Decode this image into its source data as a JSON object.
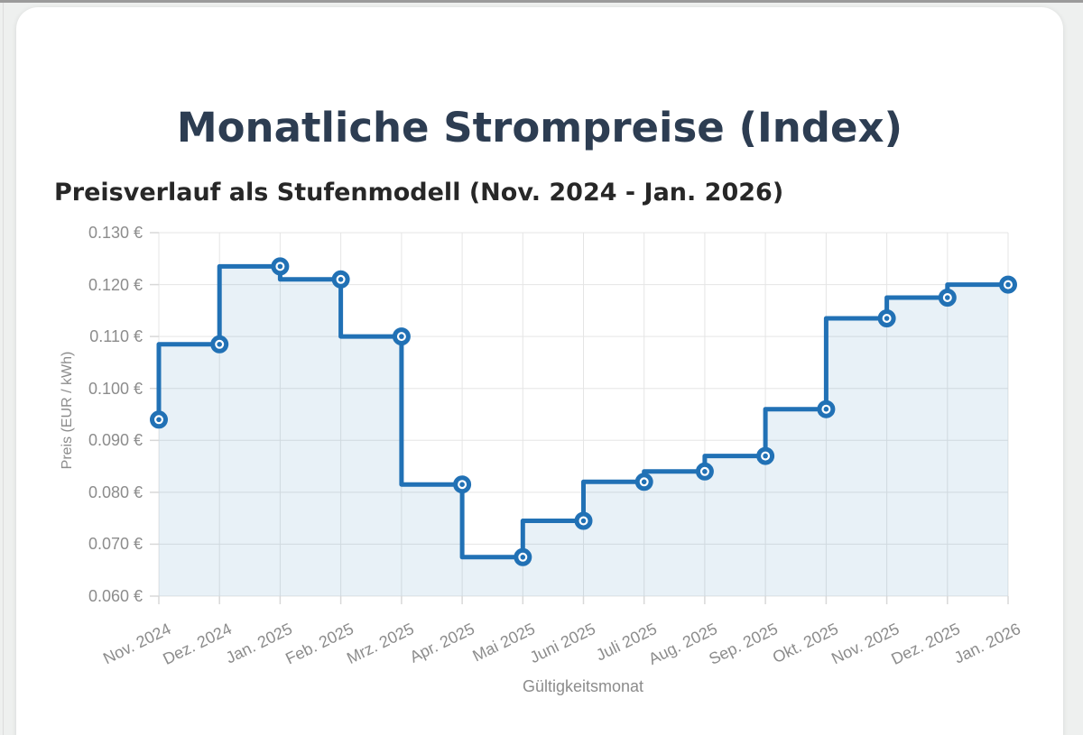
{
  "page": {
    "title": "Monatliche Strompreise (Index)",
    "subtitle": "Preisverlauf als Stufenmodell (Nov. 2024 - Jan. 2026)"
  },
  "chart_data": {
    "type": "line",
    "stepped": "before",
    "title": "Monatliche Strompreise (Index)",
    "subtitle": "Preisverlauf als Stufenmodell (Nov. 2024 - Jan. 2026)",
    "categories": [
      "Nov. 2024",
      "Dez. 2024",
      "Jan. 2025",
      "Feb. 2025",
      "Mrz. 2025",
      "Apr. 2025",
      "Mai 2025",
      "Juni 2025",
      "Juli 2025",
      "Aug. 2025",
      "Sep. 2025",
      "Okt. 2025",
      "Nov. 2025",
      "Dez. 2025",
      "Jan. 2026"
    ],
    "values": [
      0.094,
      0.1085,
      0.1235,
      0.121,
      0.11,
      0.0815,
      0.0675,
      0.0745,
      0.082,
      0.084,
      0.087,
      0.096,
      0.1135,
      0.1175,
      0.12
    ],
    "xlabel": "Gültigkeitsmonat",
    "ylabel": "Preis (EUR / kWh)",
    "ylim": [
      0.06,
      0.13
    ],
    "ytick_step": 0.01,
    "ytick_suffix": " €",
    "grid": true,
    "legend": false,
    "colors": {
      "line": "#2171b5",
      "fill": "rgba(33,113,181,0.10)",
      "marker_fill": "#ffffff",
      "grid": "#e5e5e5",
      "tick": "#d8d8d8",
      "tick_text": "#8c8c8c",
      "title_text": "#2d3d52"
    }
  }
}
